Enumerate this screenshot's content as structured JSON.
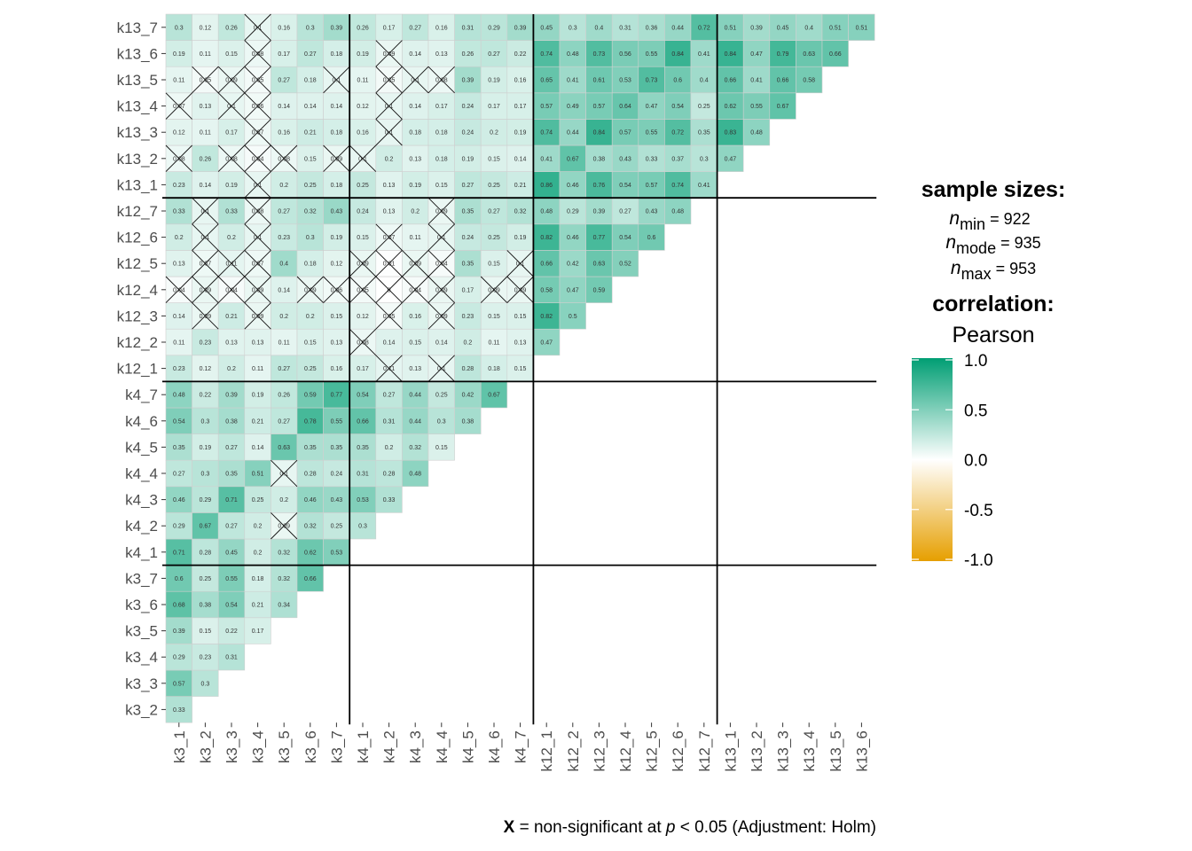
{
  "chart_data": {
    "type": "heatmap",
    "title": "",
    "labels": [
      "k3_1",
      "k3_2",
      "k3_3",
      "k3_4",
      "k3_5",
      "k3_6",
      "k3_7",
      "k4_1",
      "k4_2",
      "k4_3",
      "k4_4",
      "k4_5",
      "k4_6",
      "k4_7",
      "k12_1",
      "k12_2",
      "k12_3",
      "k12_4",
      "k12_5",
      "k12_6",
      "k12_7",
      "k13_1",
      "k13_2",
      "k13_3",
      "k13_4",
      "k13_5",
      "k13_6",
      "k13_7"
    ],
    "x_labels": [
      "k3_1",
      "k3_2",
      "k3_3",
      "k3_4",
      "k3_5",
      "k3_6",
      "k3_7",
      "k4_1",
      "k4_2",
      "k4_3",
      "k4_4",
      "k4_5",
      "k4_6",
      "k4_7",
      "k12_1",
      "k12_2",
      "k12_3",
      "k12_4",
      "k12_5",
      "k12_6",
      "k12_7",
      "k13_1",
      "k13_2",
      "k13_3",
      "k13_4",
      "k13_5",
      "k13_6"
    ],
    "y_labels_bottom_to_top": [
      "k3_2",
      "k3_3",
      "k3_4",
      "k3_5",
      "k3_6",
      "k3_7",
      "k4_1",
      "k4_2",
      "k4_3",
      "k4_4",
      "k4_5",
      "k4_6",
      "k4_7",
      "k12_1",
      "k12_2",
      "k12_3",
      "k12_4",
      "k12_5",
      "k12_6",
      "k12_7",
      "k13_1",
      "k13_2",
      "k13_3",
      "k13_4",
      "k13_5",
      "k13_6",
      "k13_7"
    ],
    "rows": [
      {
        "label": "k3_2",
        "values": [
          "0.33"
        ]
      },
      {
        "label": "k3_3",
        "values": [
          "0.57",
          "0.3"
        ]
      },
      {
        "label": "k3_4",
        "values": [
          "0.29",
          "0.23",
          "0.31"
        ]
      },
      {
        "label": "k3_5",
        "values": [
          "0.39",
          "0.15",
          "0.22",
          "0.17"
        ]
      },
      {
        "label": "k3_6",
        "values": [
          "0.68",
          "0.38",
          "0.54",
          "0.21",
          "0.34"
        ]
      },
      {
        "label": "k3_7",
        "values": [
          "0.6",
          "0.25",
          "0.55",
          "0.18",
          "0.32",
          "0.66"
        ]
      },
      {
        "label": "k4_1",
        "values": [
          "0.71",
          "0.28",
          "0.45",
          "0.2",
          "0.32",
          "0.62",
          "0.53"
        ]
      },
      {
        "label": "k4_2",
        "values": [
          "0.29",
          "0.67",
          "0.27",
          "0.2",
          "0.09",
          "0.32",
          "0.25",
          "0.3"
        ]
      },
      {
        "label": "k4_3",
        "values": [
          "0.46",
          "0.29",
          "0.71",
          "0.25",
          "0.2",
          "0.46",
          "0.43",
          "0.53",
          "0.33"
        ]
      },
      {
        "label": "k4_4",
        "values": [
          "0.27",
          "0.3",
          "0.35",
          "0.51",
          "0.1",
          "0.28",
          "0.24",
          "0.31",
          "0.28",
          "0.48"
        ]
      },
      {
        "label": "k4_5",
        "values": [
          "0.35",
          "0.19",
          "0.27",
          "0.14",
          "0.63",
          "0.35",
          "0.35",
          "0.35",
          "0.2",
          "0.32",
          "0.15"
        ]
      },
      {
        "label": "k4_6",
        "values": [
          "0.54",
          "0.3",
          "0.38",
          "0.21",
          "0.27",
          "0.78",
          "0.55",
          "0.66",
          "0.31",
          "0.44",
          "0.3",
          "0.38"
        ]
      },
      {
        "label": "k4_7",
        "values": [
          "0.48",
          "0.22",
          "0.39",
          "0.19",
          "0.26",
          "0.59",
          "0.77",
          "0.54",
          "0.27",
          "0.44",
          "0.25",
          "0.42",
          "0.67"
        ]
      },
      {
        "label": "k12_1",
        "values": [
          "0.23",
          "0.12",
          "0.2",
          "0.11",
          "0.27",
          "0.25",
          "0.16",
          "0.17",
          "0.11",
          "0.13",
          "0.1",
          "0.28",
          "0.18",
          "0.15"
        ]
      },
      {
        "label": "k12_2",
        "values": [
          "0.11",
          "0.23",
          "0.13",
          "0.13",
          "0.11",
          "0.15",
          "0.13",
          "0.08",
          "0.14",
          "0.15",
          "0.14",
          "0.2",
          "0.11",
          "0.13",
          "0.47"
        ]
      },
      {
        "label": "k12_3",
        "values": [
          "0.14",
          "0.09",
          "0.21",
          "0.09",
          "0.2",
          "0.2",
          "0.15",
          "0.12",
          "0.05",
          "0.16",
          "0.09",
          "0.23",
          "0.15",
          "0.15",
          "0.82",
          "0.5"
        ]
      },
      {
        "label": "k12_4",
        "values": [
          "0.04",
          "0.09",
          "0.04",
          "0.09",
          "0.14",
          "0.09",
          "0.06",
          "0.05",
          "0",
          "0.04",
          "0.09",
          "0.17",
          "0.09",
          "0.09",
          "0.58",
          "0.47",
          "0.59"
        ]
      },
      {
        "label": "k12_5",
        "values": [
          "0.13",
          "0.07",
          "0.11",
          "0.07",
          "0.4",
          "0.18",
          "0.12",
          "0.09",
          "0.01",
          "0.09",
          "0.04",
          "0.35",
          "0.15",
          "0.1",
          "0.66",
          "0.42",
          "0.63",
          "0.52"
        ]
      },
      {
        "label": "k12_6",
        "values": [
          "0.2",
          "0.1",
          "0.2",
          "0.1",
          "0.23",
          "0.3",
          "0.19",
          "0.15",
          "0.07",
          "0.11",
          "0.1",
          "0.24",
          "0.25",
          "0.19",
          "0.82",
          "0.46",
          "0.77",
          "0.54",
          "0.6"
        ]
      },
      {
        "label": "k12_7",
        "values": [
          "0.33",
          "0.1",
          "0.33",
          "0.08",
          "0.27",
          "0.32",
          "0.43",
          "0.24",
          "0.13",
          "0.2",
          "0.09",
          "0.35",
          "0.27",
          "0.32",
          "0.48",
          "0.29",
          "0.39",
          "0.27",
          "0.43",
          "0.48"
        ]
      },
      {
        "label": "k13_1",
        "values": [
          "0.23",
          "0.14",
          "0.19",
          "0.1",
          "0.2",
          "0.25",
          "0.18",
          "0.25",
          "0.13",
          "0.19",
          "0.15",
          "0.27",
          "0.25",
          "0.21",
          "0.86",
          "0.46",
          "0.76",
          "0.54",
          "0.57",
          "0.74",
          "0.41"
        ]
      },
      {
        "label": "k13_2",
        "values": [
          "0.08",
          "0.26",
          "0.08",
          "0.04",
          "0.08",
          "0.15",
          "0.09",
          "0.1",
          "0.2",
          "0.13",
          "0.18",
          "0.19",
          "0.15",
          "0.14",
          "0.41",
          "0.67",
          "0.38",
          "0.43",
          "0.33",
          "0.37",
          "0.3",
          "0.47"
        ]
      },
      {
        "label": "k13_3",
        "values": [
          "0.12",
          "0.11",
          "0.17",
          "0.07",
          "0.16",
          "0.21",
          "0.18",
          "0.16",
          "0.1",
          "0.18",
          "0.18",
          "0.24",
          "0.2",
          "0.19",
          "0.74",
          "0.44",
          "0.84",
          "0.57",
          "0.55",
          "0.72",
          "0.35",
          "0.83",
          "0.48"
        ]
      },
      {
        "label": "k13_4",
        "values": [
          "0.07",
          "0.13",
          "0.1",
          "0.06",
          "0.14",
          "0.14",
          "0.14",
          "0.12",
          "0.1",
          "0.14",
          "0.17",
          "0.24",
          "0.17",
          "0.17",
          "0.57",
          "0.49",
          "0.57",
          "0.64",
          "0.47",
          "0.54",
          "0.25",
          "0.62",
          "0.55",
          "0.67"
        ]
      },
      {
        "label": "k13_5",
        "values": [
          "0.11",
          "0.05",
          "0.09",
          "0.05",
          "0.27",
          "0.18",
          "0.1",
          "0.11",
          "0.05",
          "0.1",
          "0.08",
          "0.39",
          "0.19",
          "0.16",
          "0.65",
          "0.41",
          "0.61",
          "0.53",
          "0.73",
          "0.6",
          "0.4",
          "0.66",
          "0.41",
          "0.66",
          "0.58"
        ]
      },
      {
        "label": "k13_6",
        "values": [
          "0.19",
          "0.11",
          "0.15",
          "0.08",
          "0.17",
          "0.27",
          "0.18",
          "0.19",
          "0.09",
          "0.14",
          "0.13",
          "0.26",
          "0.27",
          "0.22",
          "0.74",
          "0.48",
          "0.73",
          "0.56",
          "0.55",
          "0.84",
          "0.41",
          "0.84",
          "0.47",
          "0.79",
          "0.63",
          "0.66"
        ]
      },
      {
        "label": "k13_7",
        "values": [
          "0.3",
          "0.12",
          "0.26",
          "0.1",
          "0.16",
          "0.3",
          "0.39",
          "0.26",
          "0.17",
          "0.27",
          "0.16",
          "0.31",
          "0.29",
          "0.39",
          "0.45",
          "0.3",
          "0.4",
          "0.31",
          "0.36",
          "0.44",
          "0.72",
          "0.51",
          "0.39",
          "0.45",
          "0.4",
          "0.51",
          "0.51"
        ]
      }
    ],
    "nonsignificant": [
      [
        "k4_2",
        "k3_5"
      ],
      [
        "k4_4",
        "k3_5"
      ],
      [
        "k12_1",
        "k4_2"
      ],
      [
        "k12_1",
        "k4_4"
      ],
      [
        "k12_2",
        "k4_1"
      ],
      [
        "k12_3",
        "k3_2"
      ],
      [
        "k12_3",
        "k3_4"
      ],
      [
        "k12_3",
        "k4_2"
      ],
      [
        "k12_3",
        "k4_4"
      ],
      [
        "k12_4",
        "k3_1"
      ],
      [
        "k12_4",
        "k3_2"
      ],
      [
        "k12_4",
        "k3_3"
      ],
      [
        "k12_4",
        "k3_4"
      ],
      [
        "k12_4",
        "k3_6"
      ],
      [
        "k12_4",
        "k3_7"
      ],
      [
        "k12_4",
        "k4_1"
      ],
      [
        "k12_4",
        "k4_2"
      ],
      [
        "k12_4",
        "k4_3"
      ],
      [
        "k12_4",
        "k4_4"
      ],
      [
        "k12_4",
        "k4_6"
      ],
      [
        "k12_4",
        "k4_7"
      ],
      [
        "k12_5",
        "k3_2"
      ],
      [
        "k12_5",
        "k3_3"
      ],
      [
        "k12_5",
        "k3_4"
      ],
      [
        "k12_5",
        "k4_1"
      ],
      [
        "k12_5",
        "k4_2"
      ],
      [
        "k12_5",
        "k4_3"
      ],
      [
        "k12_5",
        "k4_4"
      ],
      [
        "k12_5",
        "k4_7"
      ],
      [
        "k12_6",
        "k3_2"
      ],
      [
        "k12_6",
        "k3_4"
      ],
      [
        "k12_6",
        "k4_2"
      ],
      [
        "k12_6",
        "k4_4"
      ],
      [
        "k12_7",
        "k3_2"
      ],
      [
        "k12_7",
        "k3_4"
      ],
      [
        "k12_7",
        "k4_4"
      ],
      [
        "k13_1",
        "k3_4"
      ],
      [
        "k13_2",
        "k3_1"
      ],
      [
        "k13_2",
        "k3_3"
      ],
      [
        "k13_2",
        "k3_4"
      ],
      [
        "k13_2",
        "k3_5"
      ],
      [
        "k13_2",
        "k3_7"
      ],
      [
        "k13_2",
        "k4_1"
      ],
      [
        "k13_3",
        "k3_4"
      ],
      [
        "k13_3",
        "k4_2"
      ],
      [
        "k13_4",
        "k3_1"
      ],
      [
        "k13_4",
        "k3_3"
      ],
      [
        "k13_4",
        "k3_4"
      ],
      [
        "k13_4",
        "k4_2"
      ],
      [
        "k13_5",
        "k3_2"
      ],
      [
        "k13_5",
        "k3_3"
      ],
      [
        "k13_5",
        "k3_4"
      ],
      [
        "k13_5",
        "k3_7"
      ],
      [
        "k13_5",
        "k4_2"
      ],
      [
        "k13_5",
        "k4_3"
      ],
      [
        "k13_5",
        "k4_4"
      ],
      [
        "k13_6",
        "k3_4"
      ],
      [
        "k13_6",
        "k4_2"
      ],
      [
        "k13_7",
        "k3_4"
      ]
    ],
    "separators": [
      "k3",
      "k4",
      "k12",
      "k13"
    ],
    "color_scale": {
      "low": "#E69F00",
      "mid": "#FFFFFF",
      "high": "#009E73",
      "limits": [
        -1,
        1
      ]
    },
    "legend_placement": "right"
  },
  "legend": {
    "sample_title": "sample sizes:",
    "n_min_sub": "min",
    "n_min_value": " = 922",
    "n_mode_sub": "mode",
    "n_mode_value": " = 935",
    "n_max_sub": "max",
    "n_max_value": " = 953",
    "n_symbol": "n",
    "corr_title": "correlation:",
    "corr_method": "Pearson",
    "ticks": [
      "1.0",
      "0.5",
      "0.0",
      "-0.5",
      "-1.0"
    ]
  },
  "caption": {
    "x_symbol": "X",
    "text1": " = non-significant at ",
    "p_symbol": "p",
    "text2": " < 0.05 (Adjustment: Holm)"
  }
}
